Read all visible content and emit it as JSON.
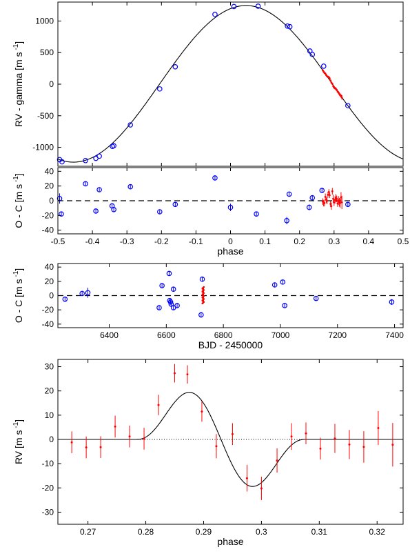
{
  "colors": {
    "blue": "#0000ff",
    "red": "#ff0000",
    "model": "#000000"
  },
  "chart_data": [
    {
      "id": "p1",
      "type": "scatter",
      "ylabel": "RV - gamma [m s",
      "ylabel_sup": "-1",
      "xlim": [
        -0.5,
        0.5
      ],
      "ylim": [
        -1300,
        1300
      ],
      "yticks": [
        -1000,
        -500,
        0,
        500,
        1000
      ],
      "xticks": [
        -0.5,
        -0.4,
        -0.3,
        -0.2,
        -0.1,
        0,
        0.1,
        0.2,
        0.3,
        0.4,
        0.5
      ],
      "show_xticklabels": false,
      "model": {
        "kind": "sine",
        "amplitude": 1240,
        "phase_of_max": 0.045,
        "offset": 5
      },
      "series": [
        {
          "color": "blue",
          "points": [
            [
              -0.495,
              -1195
            ],
            [
              -0.488,
              -1230
            ],
            [
              -0.42,
              -1210
            ],
            [
              -0.39,
              -1175
            ],
            [
              -0.38,
              -1140
            ],
            [
              -0.342,
              -985
            ],
            [
              -0.338,
              -975
            ],
            [
              -0.29,
              -645
            ],
            [
              -0.205,
              -75
            ],
            [
              -0.16,
              275
            ],
            [
              -0.045,
              1105
            ],
            [
              0.01,
              1230
            ],
            [
              0.08,
              1235
            ],
            [
              0.165,
              920
            ],
            [
              0.172,
              910
            ],
            [
              0.23,
              525
            ],
            [
              0.237,
              470
            ],
            [
              0.27,
              285
            ],
            [
              0.34,
              -340
            ]
          ]
        },
        {
          "color": "red",
          "range": [
            0.267,
            0.323
          ]
        }
      ]
    },
    {
      "id": "p2",
      "type": "scatter",
      "ylabel": "O - C [m s",
      "ylabel_sup": "-1",
      "xlabel": "phase",
      "xlim": [
        -0.5,
        0.5
      ],
      "ylim": [
        -45,
        45
      ],
      "yticks": [
        -40,
        -20,
        0,
        20,
        40
      ],
      "xticks": [
        -0.5,
        -0.4,
        -0.3,
        -0.2,
        -0.1,
        0,
        0.1,
        0.2,
        0.3,
        0.4,
        0.5
      ],
      "xticklabels": [
        "-0.5",
        "-0.4",
        "-0.3",
        "-0.2",
        "-0.1",
        "0",
        "0.1",
        "0.2",
        "0.3",
        "0.4",
        "0.5"
      ],
      "zero_line": "dashed",
      "series": [
        {
          "color": "blue",
          "points": [
            [
              -0.495,
              3,
              7
            ],
            [
              -0.49,
              -18,
              3
            ],
            [
              -0.42,
              23,
              3
            ],
            [
              -0.39,
              -14,
              3
            ],
            [
              -0.38,
              15,
              3
            ],
            [
              -0.343,
              -7,
              3
            ],
            [
              -0.338,
              -12,
              3
            ],
            [
              -0.29,
              19,
              3
            ],
            [
              -0.205,
              -15,
              3
            ],
            [
              -0.16,
              -5,
              3
            ],
            [
              -0.045,
              31,
              3
            ],
            [
              -0.0,
              -9,
              5
            ],
            [
              0.075,
              -18,
              3
            ],
            [
              0.163,
              -27,
              5
            ],
            [
              0.17,
              9,
              3
            ],
            [
              0.228,
              -9,
              4
            ],
            [
              0.237,
              4,
              3
            ],
            [
              0.265,
              14,
              3
            ],
            [
              0.34,
              -5,
              3
            ]
          ]
        },
        {
          "color": "red",
          "residuals_of": "p4",
          "xshift": 0
        }
      ]
    },
    {
      "id": "p3",
      "type": "scatter",
      "ylabel": "O - C [m s",
      "ylabel_sup": "-1",
      "xlabel": "BJD - 2450000",
      "xlim": [
        6220,
        7430
      ],
      "ylim": [
        -45,
        45
      ],
      "yticks": [
        -40,
        -20,
        0,
        20,
        40
      ],
      "xticks": [
        6400,
        6600,
        6800,
        7000,
        7200,
        7400
      ],
      "xticklabels": [
        "6400",
        "6600",
        "6800",
        "7000",
        "7200",
        "7400"
      ],
      "zero_line": "dashed",
      "series": [
        {
          "color": "blue",
          "points": [
            [
              6245,
              -5,
              3
            ],
            [
              6305,
              3,
              3
            ],
            [
              6325,
              4,
              7
            ],
            [
              6575,
              -17,
              3
            ],
            [
              6585,
              14,
              3
            ],
            [
              6610,
              31,
              3
            ],
            [
              6612,
              -7,
              3
            ],
            [
              6615,
              -9,
              3
            ],
            [
              6617,
              -12,
              3
            ],
            [
              6625,
              9,
              3
            ],
            [
              6625,
              -17,
              3
            ],
            [
              6638,
              -14,
              3
            ],
            [
              6722,
              -27,
              4
            ],
            [
              6726,
              23,
              3
            ],
            [
              6980,
              15,
              3
            ],
            [
              7008,
              19,
              3
            ],
            [
              7015,
              -14,
              3
            ],
            [
              7125,
              -4,
              3
            ],
            [
              7390,
              -9,
              4
            ]
          ]
        },
        {
          "color": "red",
          "cluster": {
            "x": 6729,
            "ymin": -11,
            "ymax": 12
          }
        }
      ]
    },
    {
      "id": "p4",
      "type": "scatter",
      "ylabel": "RV  [m s",
      "ylabel_sup": "-1",
      "xlabel": "phase",
      "xlim": [
        0.2648,
        0.3245
      ],
      "ylim": [
        -35,
        33
      ],
      "yticks": [
        -30,
        -20,
        -10,
        0,
        10,
        20,
        30
      ],
      "xticks": [
        0.27,
        0.28,
        0.29,
        0.3,
        0.31,
        0.32
      ],
      "xticklabels": [
        "0.27",
        "0.28",
        "0.29",
        "0.3",
        "0.31",
        "0.32"
      ],
      "zero_line": "dotted",
      "model": {
        "kind": "rossiter",
        "t1": 0.2785,
        "t2": 0.3075,
        "tc": 0.293,
        "amplitude": 24.5,
        "peak_offset": 0.0065
      },
      "series": [
        {
          "color": "red",
          "points": [
            [
              0.2672,
              -1.2,
              4.5
            ],
            [
              0.2697,
              -3.3,
              4.5
            ],
            [
              0.2722,
              -3.2,
              4.5
            ],
            [
              0.2747,
              5.3,
              4.5
            ],
            [
              0.2772,
              1.2,
              4.5
            ],
            [
              0.2797,
              0.3,
              4.5
            ],
            [
              0.2822,
              14.2,
              4.2
            ],
            [
              0.285,
              27.3,
              3.8
            ],
            [
              0.2872,
              26.8,
              3.8
            ],
            [
              0.2897,
              11.5,
              4.2
            ],
            [
              0.2922,
              -2.8,
              5.0
            ],
            [
              0.295,
              2.2,
              4.5
            ],
            [
              0.2975,
              -16.0,
              5.5
            ],
            [
              0.3,
              -20.2,
              4.8
            ],
            [
              0.3027,
              -8.7,
              5.0
            ],
            [
              0.3052,
              1.2,
              5.5
            ],
            [
              0.3077,
              2.5,
              4.5
            ],
            [
              0.3102,
              -3.8,
              4.5
            ],
            [
              0.3127,
              0.4,
              6.0
            ],
            [
              0.3152,
              -2.1,
              6.0
            ],
            [
              0.3177,
              -3.1,
              6.5
            ],
            [
              0.3202,
              4.7,
              7.0
            ],
            [
              0.3227,
              -2.2,
              9.0
            ]
          ]
        }
      ]
    }
  ]
}
